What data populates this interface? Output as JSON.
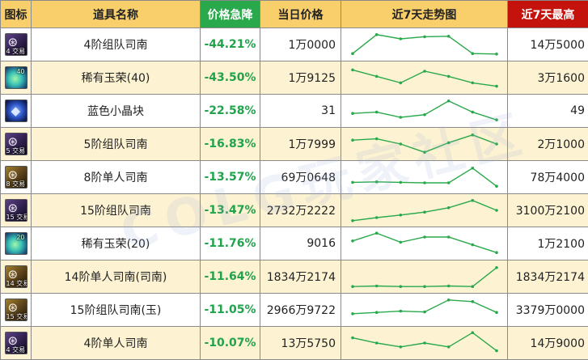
{
  "header": {
    "icon": "图标",
    "name": "道具名称",
    "drop": "价格急降",
    "price": "当日价格",
    "trend": "近7天走势图",
    "max": "近7天最高"
  },
  "watermark": "COLG玩家社区",
  "colors": {
    "header_bg": "#f8cf6a",
    "drop_header_bg": "#2aa94c",
    "max_header_bg": "#c4120c",
    "drop_text": "#21a34c",
    "row_alt_bg": "#fdf3d3",
    "trend_line": "#2aa94c"
  },
  "rows": [
    {
      "icon": "compass-icon",
      "icon_style": "compass",
      "icon_tag": "4 交易",
      "name": "4阶组队司南",
      "drop": "-44.21%",
      "price": "1万0000",
      "max": "14万5000",
      "trend": [
        15,
        88,
        72,
        80,
        82,
        15,
        13
      ]
    },
    {
      "icon": "jade-icon",
      "icon_style": "jade",
      "icon_tag": "40",
      "name": "稀有玉荣(40)",
      "drop": "-43.50%",
      "price": "1万9125",
      "max": "3万1600",
      "trend": [
        80,
        55,
        30,
        75,
        55,
        30,
        17
      ]
    },
    {
      "icon": "crystal-icon",
      "icon_style": "crystal",
      "icon_tag": "",
      "name": "蓝色小晶块",
      "drop": "-22.58%",
      "price": "31",
      "max": "49",
      "trend": [
        40,
        45,
        25,
        35,
        88,
        45,
        15
      ]
    },
    {
      "icon": "compass-icon",
      "icon_style": "compass",
      "icon_tag": "5 交易",
      "name": "5阶组队司南",
      "drop": "-16.83%",
      "price": "1万7999",
      "max": "2万1000",
      "trend": [
        65,
        70,
        50,
        18,
        55,
        85,
        50
      ]
    },
    {
      "icon": "compass-gold-icon",
      "icon_style": "gold",
      "icon_tag": "8 交易",
      "name": "8阶单人司南",
      "drop": "-13.57%",
      "price": "69万0648",
      "max": "78万4000",
      "trend": [
        30,
        32,
        30,
        28,
        28,
        85,
        15
      ]
    },
    {
      "icon": "compass-icon",
      "icon_style": "compass",
      "icon_tag": "15 交易",
      "name": "15阶组队司南",
      "drop": "-13.47%",
      "price": "2732万2222",
      "max": "3100万2100",
      "trend": [
        10,
        22,
        32,
        43,
        60,
        88,
        50
      ]
    },
    {
      "icon": "jade-icon",
      "icon_style": "jade",
      "icon_tag": "20",
      "name": "稀有玉荣(20)",
      "drop": "-11.76%",
      "price": "9016",
      "max": "1万2100",
      "trend": [
        60,
        90,
        55,
        75,
        75,
        45,
        15
      ]
    },
    {
      "icon": "compass-gold-icon",
      "icon_style": "gold",
      "icon_tag": "14 交易",
      "name": "14阶单人司南(司南)",
      "drop": "-11.64%",
      "price": "1834万2174",
      "max": "1834万2174",
      "trend": [
        12,
        14,
        12,
        12,
        14,
        12,
        85
      ]
    },
    {
      "icon": "compass-gold-icon",
      "icon_style": "gold",
      "icon_tag": "15 交易",
      "name": "15阶组队司南(玉)",
      "drop": "-11.05%",
      "price": "2966万9722",
      "max": "3379万0000",
      "trend": [
        35,
        40,
        45,
        42,
        88,
        82,
        40
      ]
    },
    {
      "icon": "compass-icon",
      "icon_style": "compass",
      "icon_tag": "4 交易",
      "name": "4阶单人司南",
      "drop": "-10.07%",
      "price": "13万5750",
      "max": "14万9000",
      "trend": [
        70,
        50,
        35,
        50,
        35,
        90,
        20
      ]
    }
  ]
}
